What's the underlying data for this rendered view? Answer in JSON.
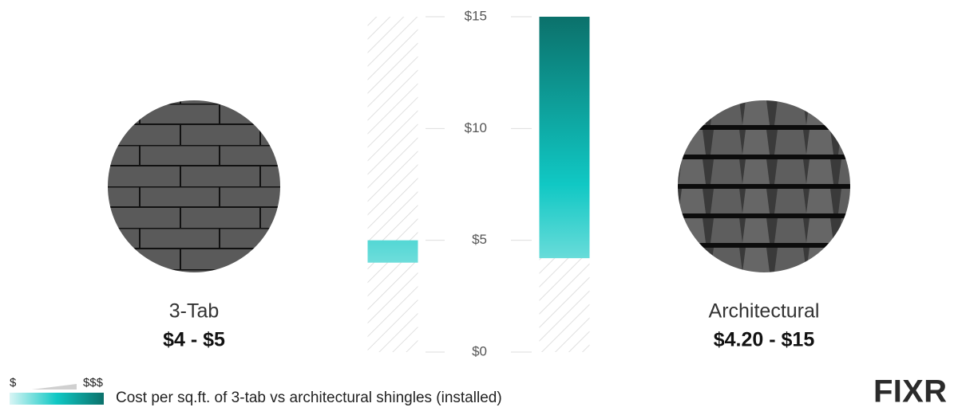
{
  "chart_data": {
    "type": "range-bar",
    "caption": "Cost per sq.ft. of 3-tab vs architectural shingles (installed)",
    "categories": [
      "3-Tab",
      "Architectural"
    ],
    "low": [
      4,
      4.2
    ],
    "high": [
      5,
      15
    ],
    "value_labels": [
      "$4 - $5",
      "$4.20 - $15"
    ],
    "ylim": [
      0,
      15
    ],
    "yticks": [
      {
        "value": 0,
        "label": "$0"
      },
      {
        "value": 5,
        "label": "$5"
      },
      {
        "value": 10,
        "label": "$10"
      },
      {
        "value": 15,
        "label": "$15"
      }
    ],
    "gradient_colors": [
      "#0b716b",
      "#10c8c4",
      "#d9f5f5"
    ],
    "legend": {
      "low_label": "$",
      "high_label": "$$$"
    },
    "logo": "FIXR"
  }
}
